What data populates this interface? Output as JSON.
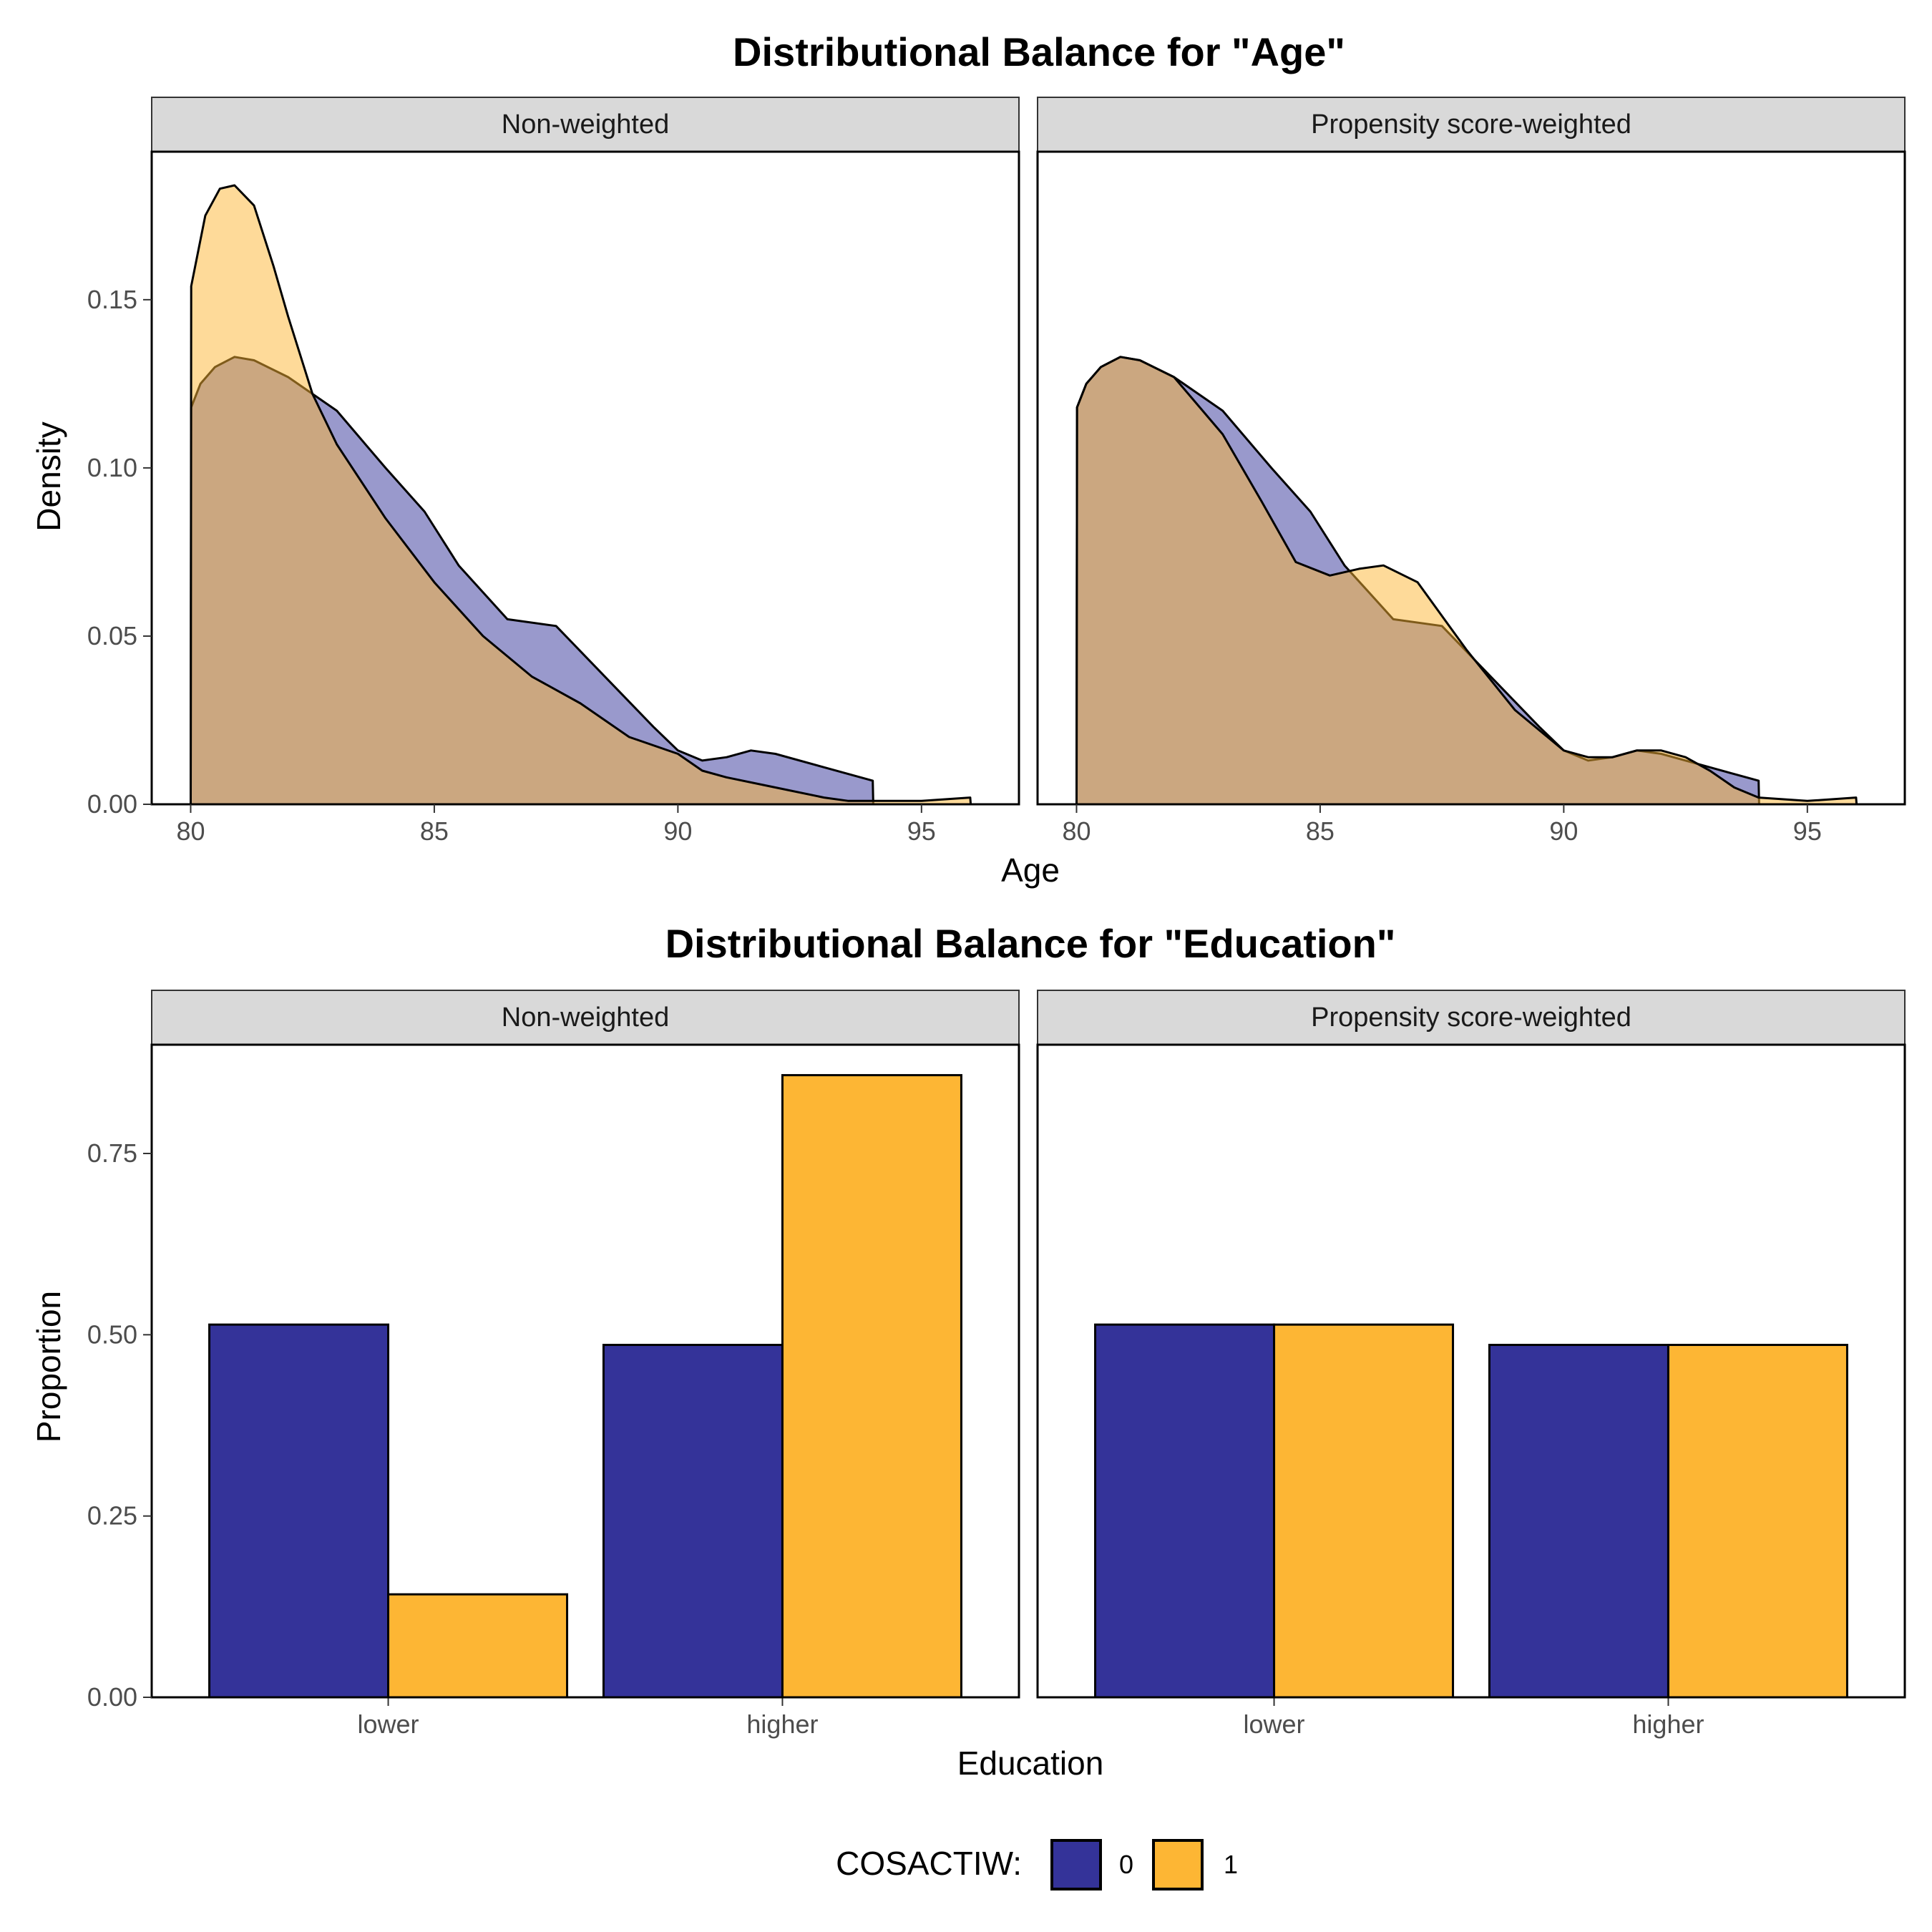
{
  "colors": {
    "group0": "#343399",
    "group1": "#FDB634",
    "strip_bg": "#D9D9D9"
  },
  "legend": {
    "title": "COSACTIW:",
    "items": [
      "0",
      "1"
    ]
  },
  "chart_data": [
    {
      "type": "area",
      "title": "Distributional Balance for \"Age\"",
      "xlabel": "Age",
      "ylabel": "Density",
      "xlim": [
        79.2,
        97.0
      ],
      "ylim": [
        0,
        0.194
      ],
      "xticks": [
        80,
        85,
        90,
        95
      ],
      "xtick_labels": [
        "80",
        "85",
        "90",
        "95"
      ],
      "yticks": [
        0,
        0.05,
        0.1,
        0.15
      ],
      "ytick_labels": [
        "0.00",
        "0.05",
        "0.10",
        "0.15"
      ],
      "grid": false,
      "panels": [
        {
          "label": "Non-weighted",
          "series": [
            {
              "name": "0",
              "x": [
                80,
                80.01,
                80.2,
                80.5,
                80.9,
                81.3,
                82,
                83,
                84,
                84.8,
                85.5,
                86.5,
                87.5,
                88.5,
                89.5,
                90,
                90.5,
                91,
                91.5,
                92,
                93,
                94,
                94.01
              ],
              "y": [
                0,
                0.118,
                0.125,
                0.13,
                0.133,
                0.132,
                0.127,
                0.117,
                0.1,
                0.087,
                0.071,
                0.055,
                0.053,
                0.038,
                0.023,
                0.016,
                0.013,
                0.014,
                0.016,
                0.015,
                0.011,
                0.007,
                0
              ]
            },
            {
              "name": "1",
              "x": [
                80,
                80.01,
                80.3,
                80.6,
                80.9,
                81.3,
                81.7,
                82,
                82.5,
                83,
                84,
                85,
                86,
                87,
                88,
                89,
                90,
                90.5,
                91,
                92,
                93,
                93.5,
                94,
                95,
                96,
                96.01
              ],
              "y": [
                0,
                0.154,
                0.175,
                0.183,
                0.184,
                0.178,
                0.16,
                0.145,
                0.122,
                0.107,
                0.085,
                0.066,
                0.05,
                0.038,
                0.03,
                0.02,
                0.015,
                0.01,
                0.008,
                0.005,
                0.002,
                0.001,
                0.001,
                0.001,
                0.002,
                0
              ]
            }
          ]
        },
        {
          "label": "Propensity score-weighted",
          "series": [
            {
              "name": "0",
              "x": [
                80,
                80.01,
                80.2,
                80.5,
                80.9,
                81.3,
                82,
                83,
                84,
                84.8,
                85.5,
                86.5,
                87.5,
                88.5,
                89.5,
                90,
                90.5,
                91,
                91.5,
                92,
                93,
                94,
                94.01
              ],
              "y": [
                0,
                0.118,
                0.125,
                0.13,
                0.133,
                0.132,
                0.127,
                0.117,
                0.1,
                0.087,
                0.071,
                0.055,
                0.053,
                0.038,
                0.023,
                0.016,
                0.013,
                0.014,
                0.016,
                0.015,
                0.011,
                0.007,
                0
              ]
            },
            {
              "name": "1",
              "x": [
                80,
                80.01,
                80.2,
                80.5,
                80.9,
                81.3,
                82,
                83,
                83.8,
                84.5,
                85.2,
                85.8,
                86.3,
                87,
                88,
                89,
                90,
                90.5,
                91,
                91.5,
                92,
                92.5,
                93,
                93.5,
                94,
                95,
                96,
                96.01
              ],
              "y": [
                0,
                0.118,
                0.125,
                0.13,
                0.133,
                0.132,
                0.127,
                0.11,
                0.09,
                0.072,
                0.068,
                0.07,
                0.071,
                0.066,
                0.046,
                0.028,
                0.016,
                0.014,
                0.014,
                0.016,
                0.016,
                0.014,
                0.01,
                0.005,
                0.002,
                0.001,
                0.002,
                0
              ]
            }
          ]
        }
      ]
    },
    {
      "type": "bar",
      "title": "Distributional Balance for \"Education\"",
      "xlabel": "Education",
      "ylabel": "Proportion",
      "categories": [
        "lower",
        "higher"
      ],
      "ylim": [
        0,
        0.9
      ],
      "yticks": [
        0,
        0.25,
        0.5,
        0.75
      ],
      "ytick_labels": [
        "0.00",
        "0.25",
        "0.50",
        "0.75"
      ],
      "grid": false,
      "panels": [
        {
          "label": "Non-weighted",
          "series": [
            {
              "name": "0",
              "values": [
                0.514,
                0.486
              ]
            },
            {
              "name": "1",
              "values": [
                0.142,
                0.858
              ]
            }
          ]
        },
        {
          "label": "Propensity score-weighted",
          "series": [
            {
              "name": "0",
              "values": [
                0.514,
                0.486
              ]
            },
            {
              "name": "1",
              "values": [
                0.514,
                0.486
              ]
            }
          ]
        }
      ]
    }
  ]
}
